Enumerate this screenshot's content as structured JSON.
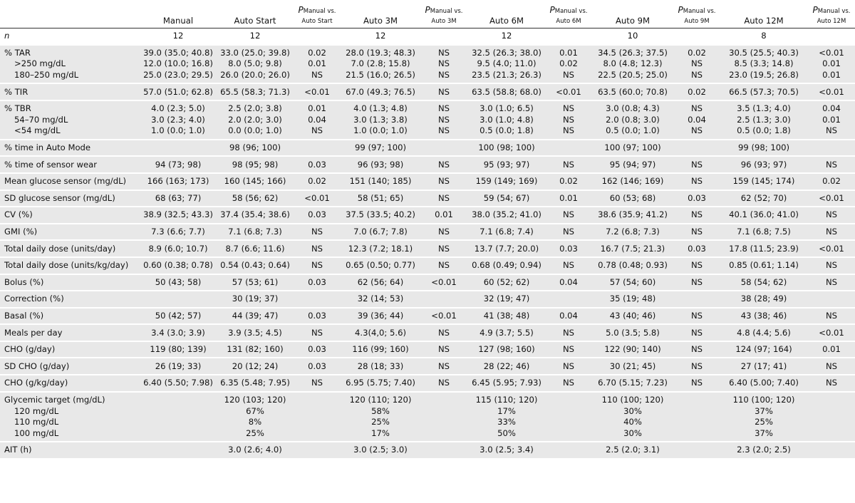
{
  "header": {
    "cols": [
      "Manual",
      "Auto Start",
      "Auto 3M",
      "Auto 6M",
      "Auto 9M",
      "Auto 12M"
    ],
    "p_main": "P",
    "p_sub": "Manual vs.",
    "p_targets": [
      "Auto Start",
      "Auto 3M",
      "Auto 6M",
      "Auto 9M",
      "Auto 12M"
    ]
  },
  "n_row": {
    "label": "n",
    "values": [
      "12",
      "12",
      "12",
      "12",
      "10",
      "8"
    ]
  },
  "rows": {
    "tar": {
      "label": "% TAR",
      "v": [
        "39.0 (35.0; 40.8)",
        "33.0 (25.0; 39.8)",
        "0.02",
        "28.0 (19.3; 48.3)",
        "NS",
        "32.5 (26.3; 38.0)",
        "0.01",
        "34.5 (26.3; 37.5)",
        "0.02",
        "30.5 (25.5; 40.3)",
        "<0.01"
      ]
    },
    "tar250": {
      "label": ">250 mg/dL",
      "v": [
        "12.0 (10.0; 16.8)",
        "8.0 (5.0; 9.8)",
        "0.01",
        "7.0 (2.8; 15.8)",
        "NS",
        "9.5 (4.0; 11.0)",
        "0.02",
        "8.0 (4.8; 12.3)",
        "NS",
        "8.5 (3.3; 14.8)",
        "0.01"
      ]
    },
    "tar180": {
      "label": "180–250 mg/dL",
      "v": [
        "25.0 (23.0; 29.5)",
        "26.0 (20.0; 26.0)",
        "NS",
        "21.5 (16.0; 26.5)",
        "NS",
        "23.5 (21.3; 26.3)",
        "NS",
        "22.5 (20.5; 25.0)",
        "NS",
        "23.0 (19.5; 26.8)",
        "0.01"
      ]
    },
    "tir": {
      "label": "% TIR",
      "v": [
        "57.0 (51.0; 62.8)",
        "65.5 (58.3; 71.3)",
        "<0.01",
        "67.0 (49.3; 76.5)",
        "NS",
        "63.5 (58.8; 68.0)",
        "<0.01",
        "63.5 (60.0; 70.8)",
        "0.02",
        "66.5 (57.3; 70.5)",
        "<0.01"
      ]
    },
    "tbr": {
      "label": "% TBR",
      "v": [
        "4.0 (2.3; 5.0)",
        "2.5 (2.0; 3.8)",
        "0.01",
        "4.0 (1.3; 4.8)",
        "NS",
        "3.0 (1.0; 6.5)",
        "NS",
        "3.0 (0.8; 4.3)",
        "NS",
        "3.5 (1.3; 4.0)",
        "0.04"
      ]
    },
    "tbr54": {
      "label": "54–70 mg/dL",
      "v": [
        "3.0 (2.3; 4.0)",
        "2.0 (2.0; 3.0)",
        "0.04",
        "3.0 (1.3; 3.8)",
        "NS",
        "3.0 (1.0; 4.8)",
        "NS",
        "2.0 (0.8; 3.0)",
        "0.04",
        "2.5 (1.3; 3.0)",
        "0.01"
      ]
    },
    "tbrlt54": {
      "label": "<54 mg/dL",
      "v": [
        "1.0 (0.0; 1.0)",
        "0.0 (0.0; 1.0)",
        "NS",
        "1.0 (0.0; 1.0)",
        "NS",
        "0.5 (0.0; 1.8)",
        "NS",
        "0.5 (0.0; 1.0)",
        "NS",
        "0.5 (0.0; 1.8)",
        "NS"
      ]
    },
    "auto": {
      "label": "% time in Auto Mode",
      "v": [
        "",
        "98 (96; 100)",
        "",
        "99 (97; 100)",
        "",
        "100 (98; 100)",
        "",
        "100 (97; 100)",
        "",
        "99 (98; 100)",
        ""
      ]
    },
    "sensor": {
      "label": "% time of sensor wear",
      "v": [
        "94 (73; 98)",
        "98 (95; 98)",
        "0.03",
        "96 (93; 98)",
        "NS",
        "95 (93; 97)",
        "NS",
        "95 (94; 97)",
        "NS",
        "96 (93; 97)",
        "NS"
      ]
    },
    "mean": {
      "label": "Mean glucose sensor (mg/dL)",
      "v": [
        "166 (163; 173)",
        "160 (145; 166)",
        "0.02",
        "151 (140; 185)",
        "NS",
        "159 (149; 169)",
        "0.02",
        "162 (146; 169)",
        "NS",
        "159 (145; 174)",
        "0.02"
      ]
    },
    "sd": {
      "label": "SD glucose sensor (mg/dL)",
      "v": [
        "68 (63; 77)",
        "58 (56; 62)",
        "<0.01",
        "58 (51; 65)",
        "NS",
        "59 (54; 67)",
        "0.01",
        "60 (53; 68)",
        "0.03",
        "62 (52; 70)",
        "<0.01"
      ]
    },
    "cv": {
      "label": "CV (%)",
      "v": [
        "38.9 (32.5; 43.3)",
        "37.4 (35.4; 38.6)",
        "0.03",
        "37.5 (33.5; 40.2)",
        "0.01",
        "38.0 (35.2; 41.0)",
        "NS",
        "38.6 (35.9; 41.2)",
        "NS",
        "40.1 (36.0; 41.0)",
        "NS"
      ]
    },
    "gmi": {
      "label": "GMI (%)",
      "v": [
        "7.3 (6.6; 7.7)",
        "7.1 (6.8; 7.3)",
        "NS",
        "7.0 (6.7; 7.8)",
        "NS",
        "7.1 (6.8; 7.4)",
        "NS",
        "7.2 (6.8; 7.3)",
        "NS",
        "7.1 (6.8; 7.5)",
        "NS"
      ]
    },
    "tdd": {
      "label": "Total daily dose (units/day)",
      "v": [
        "8.9 (6.0; 10.7)",
        "8.7 (6.6; 11.6)",
        "NS",
        "12.3 (7.2; 18.1)",
        "NS",
        "13.7 (7.7; 20.0)",
        "0.03",
        "16.7 (7.5; 21.3)",
        "0.03",
        "17.8 (11.5; 23.9)",
        "<0.01"
      ]
    },
    "tddkg": {
      "label": "Total daily dose (units/kg/day)",
      "v": [
        "0.60 (0.38; 0.78)",
        "0.54 (0.43; 0.64)",
        "NS",
        "0.65 (0.50; 0.77)",
        "NS",
        "0.68 (0.49; 0.94)",
        "NS",
        "0.78 (0.48; 0.93)",
        "NS",
        "0.85 (0.61; 1.14)",
        "NS"
      ]
    },
    "bolus": {
      "label": "Bolus (%)",
      "v": [
        "50 (43; 58)",
        "57 (53; 61)",
        "0.03",
        "62 (56; 64)",
        "<0.01",
        "60 (52; 62)",
        "0.04",
        "57 (54; 60)",
        "NS",
        "58 (54; 62)",
        "NS"
      ]
    },
    "corr": {
      "label": "Correction (%)",
      "v": [
        "",
        "30 (19; 37)",
        "",
        "32 (14; 53)",
        "",
        "32 (19; 47)",
        "",
        "35 (19; 48)",
        "",
        "38 (28; 49)",
        ""
      ]
    },
    "basal": {
      "label": "Basal (%)",
      "v": [
        "50 (42; 57)",
        "44 (39; 47)",
        "0.03",
        "39 (36; 44)",
        "<0.01",
        "41 (38; 48)",
        "0.04",
        "43 (40; 46)",
        "NS",
        "43 (38; 46)",
        "NS"
      ]
    },
    "meals": {
      "label": "Meals per day",
      "v": [
        "3.4 (3.0; 3.9)",
        "3.9 (3.5; 4.5)",
        "NS",
        "4.3(4,0; 5.6)",
        "NS",
        "4.9 (3.7; 5.5)",
        "NS",
        "5.0 (3.5; 5.8)",
        "NS",
        "4.8 (4.4; 5.6)",
        "<0.01"
      ]
    },
    "cho": {
      "label": "CHO (g/day)",
      "v": [
        "119 (80; 139)",
        "131 (82; 160)",
        "0.03",
        "116 (99; 160)",
        "NS",
        "127 (98; 160)",
        "NS",
        "122 (90; 140)",
        "NS",
        "124 (97; 164)",
        "0.01"
      ]
    },
    "sdcho": {
      "label": "SD CHO (g/day)",
      "v": [
        "26 (19; 33)",
        "20 (12; 24)",
        "0.03",
        "28 (18; 33)",
        "NS",
        "28 (22; 46)",
        "NS",
        "30 (21; 45)",
        "NS",
        "27 (17; 41)",
        "NS"
      ]
    },
    "chokg": {
      "label": "CHO (g/kg/day)",
      "v": [
        "6.40 (5.50; 7.98)",
        "6.35 (5.48; 7.95)",
        "NS",
        "6.95 (5.75; 7.40)",
        "NS",
        "6.45 (5.95; 7.93)",
        "NS",
        "6.70 (5.15; 7.23)",
        "NS",
        "6.40 (5.00; 7.40)",
        "NS"
      ]
    },
    "gt": {
      "label": "Glycemic target (mg/dL)",
      "v": [
        "",
        "120 (103; 120)",
        "",
        "120 (110; 120)",
        "",
        "115 (110; 120)",
        "",
        "110 (100; 120)",
        "",
        "110 (100; 120)",
        ""
      ]
    },
    "gt120": {
      "label": "120 mg/dL",
      "v": [
        "",
        "67%",
        "",
        "58%",
        "",
        "17%",
        "",
        "30%",
        "",
        "37%",
        ""
      ]
    },
    "gt110": {
      "label": "110 mg/dL",
      "v": [
        "",
        "8%",
        "",
        "25%",
        "",
        "33%",
        "",
        "40%",
        "",
        "25%",
        ""
      ]
    },
    "gt100": {
      "label": "100 mg/dL",
      "v": [
        "",
        "25%",
        "",
        "17%",
        "",
        "50%",
        "",
        "30%",
        "",
        "37%",
        ""
      ]
    },
    "ait": {
      "label": "AIT (h)",
      "v": [
        "",
        "3.0 (2.6; 4.0)",
        "",
        "3.0 (2.5; 3.0)",
        "",
        "3.0 (2.5; 3.4)",
        "",
        "2.5 (2.0; 3.1)",
        "",
        "2.3 (2.0; 2.5)",
        ""
      ]
    }
  }
}
